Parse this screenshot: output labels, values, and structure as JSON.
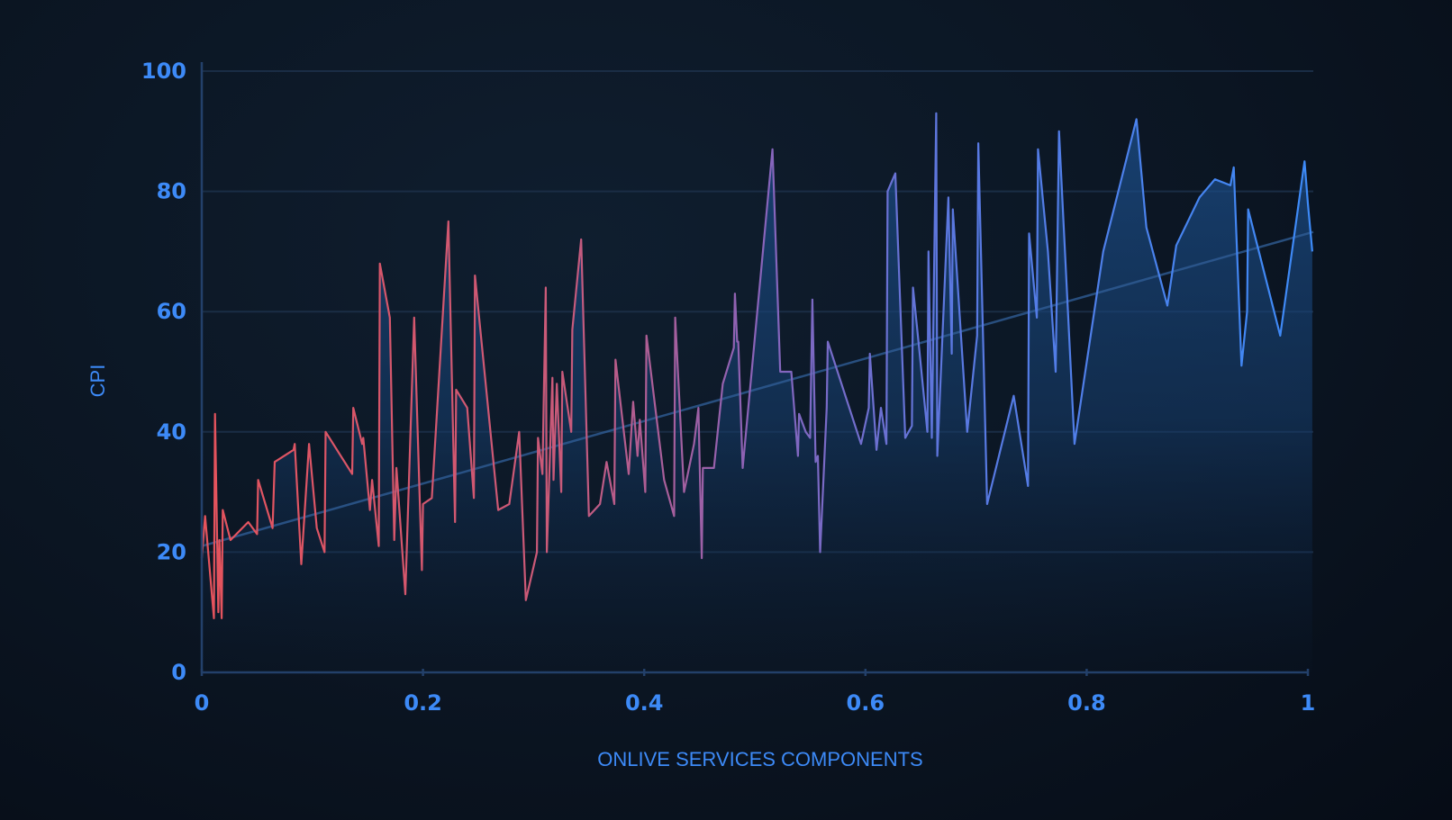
{
  "chart_data": {
    "type": "area",
    "title": "",
    "xlabel": "ONLIVE SERVICES COMPONENTS",
    "ylabel": "CPI",
    "xlim": [
      0,
      1
    ],
    "ylim": [
      0,
      100
    ],
    "x_ticks": [
      0,
      0.2,
      0.4,
      0.6,
      0.8,
      1
    ],
    "x_tick_labels": [
      "0",
      "0.2",
      "0.4",
      "0.6",
      "0.8",
      "1"
    ],
    "y_ticks": [
      0,
      20,
      40,
      60,
      80,
      100
    ],
    "y_tick_labels": [
      "0",
      "20",
      "40",
      "60",
      "80",
      "100"
    ],
    "grid": true,
    "trend_line": {
      "start": [
        0,
        21
      ],
      "end": [
        1,
        73
      ]
    },
    "line_gradient": [
      "#e5535c",
      "#8a63b8",
      "#3d8af7"
    ],
    "fill_color": "#1c4f8c",
    "series": [
      {
        "values": [
          [
            0.0,
            19
          ],
          [
            0.003,
            26
          ],
          [
            0.011,
            9
          ],
          [
            0.012,
            43
          ],
          [
            0.015,
            10
          ],
          [
            0.016,
            22
          ],
          [
            0.018,
            9
          ],
          [
            0.019,
            27
          ],
          [
            0.026,
            22
          ],
          [
            0.042,
            25
          ],
          [
            0.05,
            23
          ],
          [
            0.051,
            32
          ],
          [
            0.064,
            24
          ],
          [
            0.066,
            35
          ],
          [
            0.083,
            37
          ],
          [
            0.084,
            38
          ],
          [
            0.09,
            18
          ],
          [
            0.097,
            38
          ],
          [
            0.104,
            24
          ],
          [
            0.111,
            20
          ],
          [
            0.112,
            40
          ],
          [
            0.136,
            33
          ],
          [
            0.137,
            44
          ],
          [
            0.145,
            38
          ],
          [
            0.146,
            39
          ],
          [
            0.152,
            27
          ],
          [
            0.154,
            32
          ],
          [
            0.16,
            21
          ],
          [
            0.161,
            68
          ],
          [
            0.17,
            59
          ],
          [
            0.174,
            22
          ],
          [
            0.176,
            34
          ],
          [
            0.184,
            13
          ],
          [
            0.192,
            59
          ],
          [
            0.199,
            17
          ],
          [
            0.2,
            28
          ],
          [
            0.208,
            29
          ],
          [
            0.223,
            75
          ],
          [
            0.229,
            25
          ],
          [
            0.23,
            47
          ],
          [
            0.24,
            44
          ],
          [
            0.246,
            29
          ],
          [
            0.247,
            66
          ],
          [
            0.268,
            27
          ],
          [
            0.278,
            28
          ],
          [
            0.287,
            40
          ],
          [
            0.293,
            12
          ],
          [
            0.303,
            20
          ],
          [
            0.304,
            39
          ],
          [
            0.308,
            33
          ],
          [
            0.311,
            64
          ],
          [
            0.312,
            20
          ],
          [
            0.317,
            49
          ],
          [
            0.318,
            32
          ],
          [
            0.321,
            48
          ],
          [
            0.325,
            30
          ],
          [
            0.326,
            50
          ],
          [
            0.334,
            40
          ],
          [
            0.335,
            57
          ],
          [
            0.343,
            72
          ],
          [
            0.35,
            26
          ],
          [
            0.36,
            28
          ],
          [
            0.366,
            35
          ],
          [
            0.373,
            28
          ],
          [
            0.374,
            52
          ],
          [
            0.386,
            33
          ],
          [
            0.39,
            45
          ],
          [
            0.394,
            36
          ],
          [
            0.396,
            42
          ],
          [
            0.401,
            30
          ],
          [
            0.402,
            56
          ],
          [
            0.418,
            32
          ],
          [
            0.427,
            26
          ],
          [
            0.428,
            59
          ],
          [
            0.436,
            30
          ],
          [
            0.445,
            38
          ],
          [
            0.449,
            44
          ],
          [
            0.452,
            19
          ],
          [
            0.453,
            34
          ],
          [
            0.463,
            34
          ],
          [
            0.471,
            48
          ],
          [
            0.481,
            54
          ],
          [
            0.482,
            63
          ],
          [
            0.484,
            55
          ],
          [
            0.485,
            55
          ],
          [
            0.489,
            34
          ],
          [
            0.516,
            87
          ],
          [
            0.523,
            50
          ],
          [
            0.533,
            50
          ],
          [
            0.539,
            36
          ],
          [
            0.54,
            43
          ],
          [
            0.546,
            40
          ],
          [
            0.55,
            39
          ],
          [
            0.552,
            62
          ],
          [
            0.555,
            35
          ],
          [
            0.557,
            36
          ],
          [
            0.559,
            20
          ],
          [
            0.565,
            44
          ],
          [
            0.566,
            55
          ],
          [
            0.596,
            38
          ],
          [
            0.603,
            44
          ],
          [
            0.604,
            53
          ],
          [
            0.61,
            37
          ],
          [
            0.614,
            44
          ],
          [
            0.619,
            38
          ],
          [
            0.62,
            80
          ],
          [
            0.627,
            83
          ],
          [
            0.636,
            39
          ],
          [
            0.642,
            41
          ],
          [
            0.643,
            64
          ],
          [
            0.648,
            55
          ],
          [
            0.656,
            40
          ],
          [
            0.657,
            70
          ],
          [
            0.66,
            39
          ],
          [
            0.664,
            93
          ],
          [
            0.665,
            36
          ],
          [
            0.675,
            79
          ],
          [
            0.678,
            53
          ],
          [
            0.679,
            77
          ],
          [
            0.692,
            40
          ],
          [
            0.701,
            56
          ],
          [
            0.702,
            88
          ],
          [
            0.71,
            28
          ],
          [
            0.734,
            46
          ],
          [
            0.747,
            31
          ],
          [
            0.748,
            73
          ],
          [
            0.755,
            59
          ],
          [
            0.756,
            87
          ],
          [
            0.765,
            70
          ],
          [
            0.772,
            50
          ],
          [
            0.775,
            90
          ],
          [
            0.789,
            38
          ],
          [
            0.815,
            70
          ],
          [
            0.845,
            92
          ],
          [
            0.854,
            74
          ],
          [
            0.873,
            61
          ],
          [
            0.881,
            71
          ],
          [
            0.902,
            79
          ],
          [
            0.916,
            82
          ],
          [
            0.93,
            81
          ],
          [
            0.933,
            84
          ],
          [
            0.94,
            51
          ],
          [
            0.945,
            60
          ],
          [
            0.946,
            77
          ],
          [
            0.975,
            56
          ],
          [
            0.997,
            85
          ],
          [
            1.0,
            78
          ],
          [
            1.004,
            70
          ]
        ]
      }
    ]
  }
}
